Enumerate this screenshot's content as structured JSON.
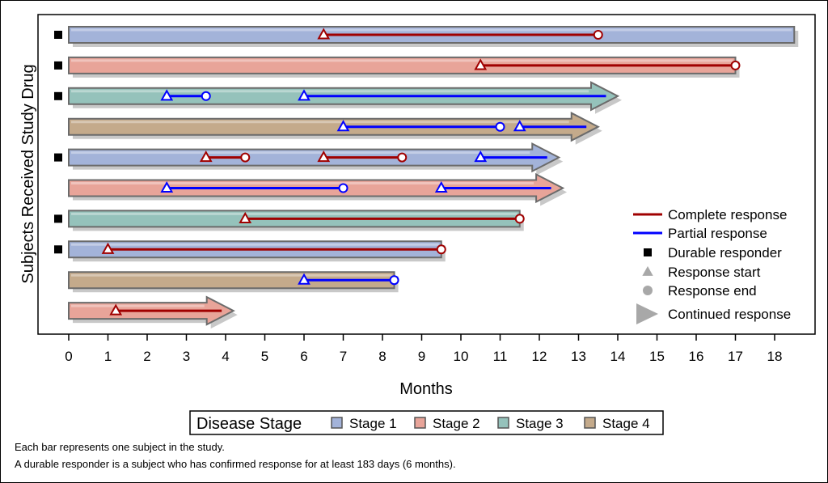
{
  "chart_data": {
    "type": "swimmer",
    "xlabel": "Months",
    "ylabel": "Subjects Received Study Drug",
    "xlim": [
      0,
      18.5
    ],
    "xticks": [
      "0",
      "1",
      "2",
      "3",
      "4",
      "5",
      "6",
      "7",
      "8",
      "9",
      "10",
      "11",
      "12",
      "13",
      "14",
      "15",
      "16",
      "17",
      "18"
    ],
    "grid": false,
    "colors": {
      "Stage 1": "#a3b3d9",
      "Stage 2": "#e8a499",
      "Stage 3": "#95c2bb",
      "Stage 4": "#c4aa8b",
      "complete": "#a00000",
      "partial": "#0000ff",
      "durable": "#000000",
      "legend_marker": "#a8a8a8"
    },
    "subjects": [
      {
        "stage": "Stage 1",
        "end": 18.5,
        "continued": false,
        "durable": true,
        "responses": [
          {
            "type": "complete",
            "start": 6.5,
            "end": 13.5,
            "ongoing": false
          }
        ]
      },
      {
        "stage": "Stage 2",
        "end": 17,
        "continued": false,
        "durable": true,
        "responses": [
          {
            "type": "complete",
            "start": 10.5,
            "end": 17,
            "ongoing": false
          }
        ]
      },
      {
        "stage": "Stage 3",
        "end": 14,
        "continued": true,
        "durable": true,
        "responses": [
          {
            "type": "partial",
            "start": 2.5,
            "end": 3.5,
            "ongoing": false
          },
          {
            "type": "partial",
            "start": 6,
            "end": 13.7,
            "ongoing": true
          }
        ]
      },
      {
        "stage": "Stage 4",
        "end": 13.5,
        "continued": true,
        "durable": false,
        "responses": [
          {
            "type": "partial",
            "start": 7,
            "end": 11,
            "ongoing": false
          },
          {
            "type": "partial",
            "start": 11.5,
            "end": 13.2,
            "ongoing": true
          }
        ]
      },
      {
        "stage": "Stage 1",
        "end": 12.5,
        "continued": true,
        "durable": true,
        "responses": [
          {
            "type": "complete",
            "start": 3.5,
            "end": 4.5,
            "ongoing": false
          },
          {
            "type": "complete",
            "start": 6.5,
            "end": 8.5,
            "ongoing": false
          },
          {
            "type": "partial",
            "start": 10.5,
            "end": 12.2,
            "ongoing": true
          }
        ]
      },
      {
        "stage": "Stage 2",
        "end": 12.6,
        "continued": true,
        "durable": false,
        "responses": [
          {
            "type": "partial",
            "start": 2.5,
            "end": 7,
            "ongoing": false
          },
          {
            "type": "partial",
            "start": 9.5,
            "end": 12.3,
            "ongoing": true
          }
        ]
      },
      {
        "stage": "Stage 3",
        "end": 11.5,
        "continued": false,
        "durable": true,
        "responses": [
          {
            "type": "complete",
            "start": 4.5,
            "end": 11.5,
            "ongoing": false
          }
        ]
      },
      {
        "stage": "Stage 1",
        "end": 9.5,
        "continued": false,
        "durable": true,
        "responses": [
          {
            "type": "complete",
            "start": 1,
            "end": 9.5,
            "ongoing": false
          }
        ]
      },
      {
        "stage": "Stage 4",
        "end": 8.3,
        "continued": false,
        "durable": false,
        "responses": [
          {
            "type": "partial",
            "start": 6,
            "end": 8.3,
            "ongoing": false
          }
        ]
      },
      {
        "stage": "Stage 2",
        "end": 4.2,
        "continued": true,
        "durable": false,
        "responses": [
          {
            "type": "complete",
            "start": 1.2,
            "end": 3.9,
            "ongoing": true
          }
        ]
      }
    ],
    "legend_inside": {
      "placement": "bottom-right",
      "items": [
        "Complete response",
        "Partial response",
        "Durable responder",
        "Response start",
        "Response end",
        "Continued response"
      ]
    },
    "legend_bottom": {
      "title": "Disease Stage",
      "items": [
        "Stage 1",
        "Stage 2",
        "Stage 3",
        "Stage 4"
      ]
    },
    "footnotes": [
      "Each bar represents one subject in the study.",
      "A durable responder is a subject who has confirmed response for at least 183 days (6 months)."
    ]
  }
}
